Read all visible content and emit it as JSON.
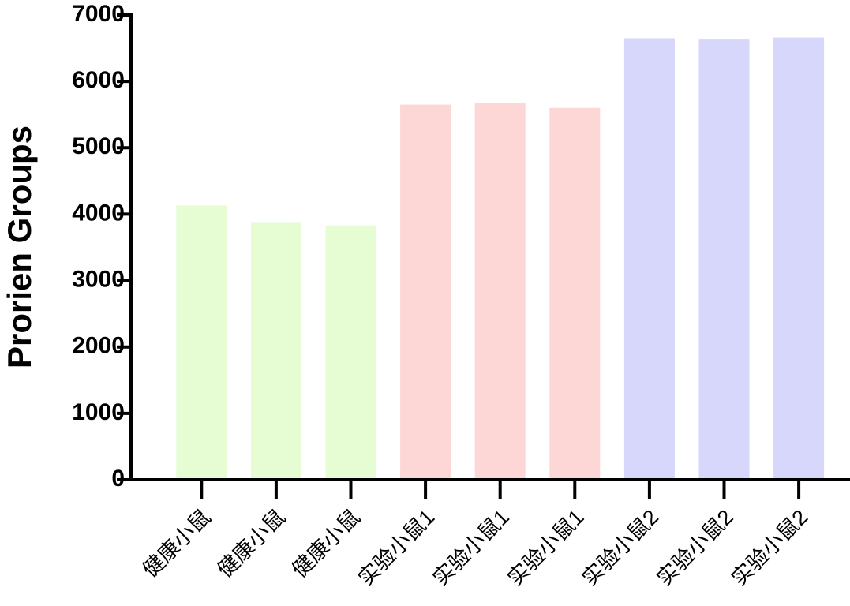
{
  "chart_data": {
    "type": "bar",
    "y_label": "Prorien Groups",
    "categories": [
      "健康小鼠",
      "健康小鼠",
      "健康小鼠",
      "实验小鼠1",
      "实验小鼠1",
      "实验小鼠1",
      "实验小鼠2",
      "实验小鼠2",
      "实验小鼠2"
    ],
    "values": [
      4130,
      3880,
      3830,
      5650,
      5670,
      5600,
      6650,
      6630,
      6660
    ],
    "colors": [
      "#e6fcd2",
      "#e6fcd2",
      "#e6fcd2",
      "#fdd6d6",
      "#fdd6d6",
      "#fdd6d6",
      "#d7d6fb",
      "#d7d6fb",
      "#d7d6fb"
    ],
    "ylim": [
      0,
      7000
    ],
    "yticks": [
      0,
      1000,
      2000,
      3000,
      4000,
      5000,
      6000,
      7000
    ]
  }
}
